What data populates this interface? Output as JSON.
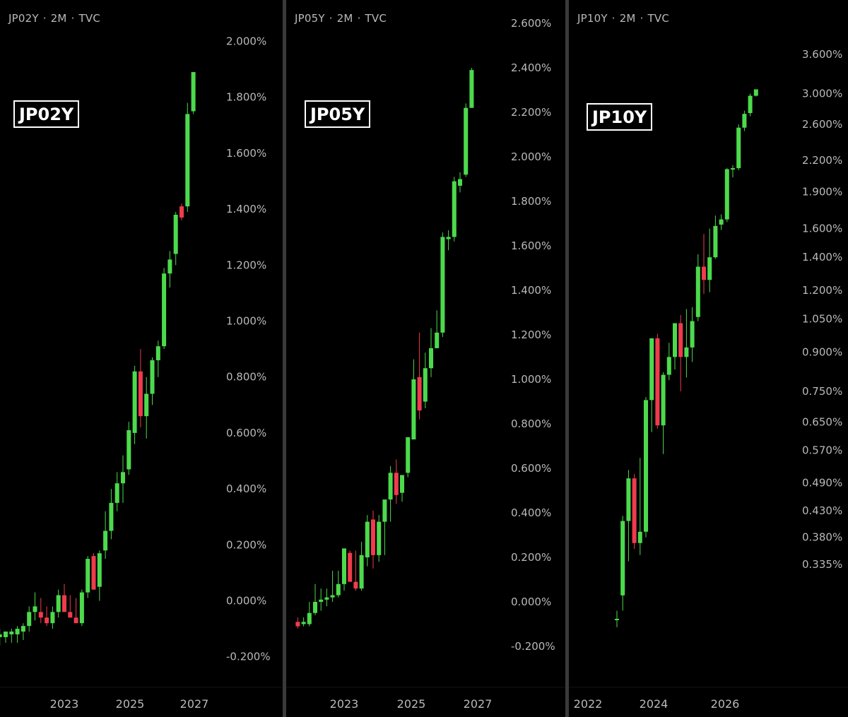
{
  "colors": {
    "up": "#4cda4c",
    "down": "#ef3b4d",
    "text": "#b9b9b9",
    "divider": "#3a3a3a"
  },
  "chart_data": [
    {
      "type": "candlestick",
      "header": {
        "symbol": "JP02Y",
        "interval": "2M",
        "source": "TVC"
      },
      "label": "JP02Y",
      "y_scale": "linear",
      "yticks": [
        "2.000%",
        "1.800%",
        "1.600%",
        "1.400%",
        "1.200%",
        "1.000%",
        "0.800%",
        "0.600%",
        "0.400%",
        "0.200%",
        "0.000%",
        "-0.200%"
      ],
      "ylim": [
        -0.24,
        2.2
      ],
      "xticks": [
        "2023",
        "2025",
        "2027"
      ],
      "candles": [
        {
          "x": "2021-03",
          "o": -0.13,
          "h": -0.1,
          "l": -0.16,
          "c": -0.12
        },
        {
          "x": "2021-05",
          "o": -0.13,
          "h": -0.11,
          "l": -0.15,
          "c": -0.11
        },
        {
          "x": "2021-07",
          "o": -0.12,
          "h": -0.1,
          "l": -0.15,
          "c": -0.11
        },
        {
          "x": "2021-09",
          "o": -0.12,
          "h": -0.09,
          "l": -0.15,
          "c": -0.1
        },
        {
          "x": "2021-11",
          "o": -0.11,
          "h": -0.08,
          "l": -0.14,
          "c": -0.09
        },
        {
          "x": "2022-01",
          "o": -0.09,
          "h": -0.02,
          "l": -0.11,
          "c": -0.04
        },
        {
          "x": "2022-03",
          "o": -0.04,
          "h": 0.03,
          "l": -0.07,
          "c": -0.02
        },
        {
          "x": "2022-05",
          "o": -0.04,
          "h": 0.01,
          "l": -0.08,
          "c": -0.06
        },
        {
          "x": "2022-07",
          "o": -0.06,
          "h": -0.02,
          "l": -0.09,
          "c": -0.08
        },
        {
          "x": "2022-09",
          "o": -0.08,
          "h": -0.02,
          "l": -0.1,
          "c": -0.04
        },
        {
          "x": "2022-11",
          "o": -0.04,
          "h": 0.04,
          "l": -0.06,
          "c": 0.02
        },
        {
          "x": "2023-01",
          "o": 0.02,
          "h": 0.06,
          "l": -0.04,
          "c": -0.04
        },
        {
          "x": "2023-03",
          "o": -0.04,
          "h": 0.02,
          "l": -0.06,
          "c": -0.06
        },
        {
          "x": "2023-05",
          "o": -0.06,
          "h": 0.01,
          "l": -0.08,
          "c": -0.08
        },
        {
          "x": "2023-07",
          "o": -0.08,
          "h": 0.04,
          "l": -0.09,
          "c": 0.03
        },
        {
          "x": "2023-09",
          "o": 0.03,
          "h": 0.16,
          "l": 0.01,
          "c": 0.15
        },
        {
          "x": "2023-11",
          "o": 0.16,
          "h": 0.17,
          "l": 0.05,
          "c": 0.04
        },
        {
          "x": "2024-01",
          "o": 0.05,
          "h": 0.18,
          "l": 0.0,
          "c": 0.17
        },
        {
          "x": "2024-03",
          "o": 0.18,
          "h": 0.32,
          "l": 0.15,
          "c": 0.25
        },
        {
          "x": "2024-05",
          "o": 0.25,
          "h": 0.4,
          "l": 0.22,
          "c": 0.35
        },
        {
          "x": "2024-07",
          "o": 0.35,
          "h": 0.46,
          "l": 0.32,
          "c": 0.42
        },
        {
          "x": "2024-09",
          "o": 0.42,
          "h": 0.52,
          "l": 0.35,
          "c": 0.46
        },
        {
          "x": "2024-11",
          "o": 0.47,
          "h": 0.64,
          "l": 0.45,
          "c": 0.61
        },
        {
          "x": "2025-01",
          "o": 0.6,
          "h": 0.84,
          "l": 0.56,
          "c": 0.82
        },
        {
          "x": "2025-03",
          "o": 0.82,
          "h": 0.9,
          "l": 0.62,
          "c": 0.66
        },
        {
          "x": "2025-05",
          "o": 0.66,
          "h": 0.8,
          "l": 0.58,
          "c": 0.74
        },
        {
          "x": "2025-07",
          "o": 0.74,
          "h": 0.87,
          "l": 0.7,
          "c": 0.86
        },
        {
          "x": "2025-09",
          "o": 0.86,
          "h": 0.93,
          "l": 0.8,
          "c": 0.91
        },
        {
          "x": "2025-11",
          "o": 0.91,
          "h": 1.19,
          "l": 0.9,
          "c": 1.17
        },
        {
          "x": "2026-01",
          "o": 1.17,
          "h": 1.25,
          "l": 1.12,
          "c": 1.22
        },
        {
          "x": "2026-03",
          "o": 1.24,
          "h": 1.39,
          "l": 1.2,
          "c": 1.38
        },
        {
          "x": "2026-05",
          "o": 1.41,
          "h": 1.42,
          "l": 1.36,
          "c": 1.37
        },
        {
          "x": "2026-07",
          "o": 1.41,
          "h": 1.78,
          "l": 1.39,
          "c": 1.74
        },
        {
          "x": "2026-09",
          "o": 1.75,
          "h": 1.89,
          "l": 1.74,
          "c": 1.89
        }
      ]
    },
    {
      "type": "candlestick",
      "header": {
        "symbol": "JP05Y",
        "interval": "2M",
        "source": "TVC"
      },
      "label": "JP05Y",
      "y_scale": "linear",
      "yticks": [
        "2.600%",
        "2.400%",
        "2.200%",
        "2.000%",
        "1.800%",
        "1.600%",
        "1.400%",
        "1.200%",
        "1.000%",
        "0.800%",
        "0.600%",
        "0.400%",
        "0.200%",
        "0.000%",
        "-0.200%"
      ],
      "ylim": [
        -0.23,
        2.65
      ],
      "xticks": [
        "2023",
        "2025",
        "2027"
      ],
      "candles": [
        {
          "x": "2021-09",
          "o": -0.09,
          "h": -0.07,
          "l": -0.12,
          "c": -0.11
        },
        {
          "x": "2021-11",
          "o": -0.1,
          "h": -0.07,
          "l": -0.11,
          "c": -0.09
        },
        {
          "x": "2022-01",
          "o": -0.1,
          "h": 0.0,
          "l": -0.11,
          "c": -0.05
        },
        {
          "x": "2022-03",
          "o": -0.05,
          "h": 0.08,
          "l": -0.06,
          "c": 0.0
        },
        {
          "x": "2022-05",
          "o": 0.0,
          "h": 0.06,
          "l": -0.04,
          "c": 0.01
        },
        {
          "x": "2022-07",
          "o": 0.01,
          "h": 0.06,
          "l": -0.02,
          "c": 0.02
        },
        {
          "x": "2022-09",
          "o": 0.02,
          "h": 0.14,
          "l": 0.0,
          "c": 0.03
        },
        {
          "x": "2022-11",
          "o": 0.03,
          "h": 0.14,
          "l": 0.02,
          "c": 0.08
        },
        {
          "x": "2023-01",
          "o": 0.08,
          "h": 0.24,
          "l": 0.05,
          "c": 0.24
        },
        {
          "x": "2023-03",
          "o": 0.22,
          "h": 0.23,
          "l": 0.11,
          "c": 0.09
        },
        {
          "x": "2023-05",
          "o": 0.09,
          "h": 0.23,
          "l": 0.05,
          "c": 0.06
        },
        {
          "x": "2023-07",
          "o": 0.06,
          "h": 0.27,
          "l": 0.05,
          "c": 0.21
        },
        {
          "x": "2023-09",
          "o": 0.2,
          "h": 0.39,
          "l": 0.16,
          "c": 0.36
        },
        {
          "x": "2023-11",
          "o": 0.37,
          "h": 0.41,
          "l": 0.15,
          "c": 0.21
        },
        {
          "x": "2024-01",
          "o": 0.21,
          "h": 0.39,
          "l": 0.18,
          "c": 0.36
        },
        {
          "x": "2024-03",
          "o": 0.36,
          "h": 0.45,
          "l": 0.21,
          "c": 0.46
        },
        {
          "x": "2024-05",
          "o": 0.46,
          "h": 0.61,
          "l": 0.36,
          "c": 0.58
        },
        {
          "x": "2024-07",
          "o": 0.58,
          "h": 0.64,
          "l": 0.44,
          "c": 0.48
        },
        {
          "x": "2024-09",
          "o": 0.49,
          "h": 0.57,
          "l": 0.45,
          "c": 0.57
        },
        {
          "x": "2024-11",
          "o": 0.58,
          "h": 0.74,
          "l": 0.56,
          "c": 0.74
        },
        {
          "x": "2025-01",
          "o": 0.73,
          "h": 1.09,
          "l": 0.73,
          "c": 1.0
        },
        {
          "x": "2025-03",
          "o": 1.01,
          "h": 1.21,
          "l": 0.82,
          "c": 0.86
        },
        {
          "x": "2025-05",
          "o": 0.9,
          "h": 1.12,
          "l": 0.87,
          "c": 1.05
        },
        {
          "x": "2025-07",
          "o": 1.05,
          "h": 1.23,
          "l": 1.01,
          "c": 1.14
        },
        {
          "x": "2025-09",
          "o": 1.14,
          "h": 1.31,
          "l": 1.14,
          "c": 1.21
        },
        {
          "x": "2025-11",
          "o": 1.21,
          "h": 1.66,
          "l": 1.19,
          "c": 1.64
        },
        {
          "x": "2026-01",
          "o": 1.63,
          "h": 1.67,
          "l": 1.58,
          "c": 1.64
        },
        {
          "x": "2026-03",
          "o": 1.64,
          "h": 1.91,
          "l": 1.62,
          "c": 1.89
        },
        {
          "x": "2026-05",
          "o": 1.87,
          "h": 1.93,
          "l": 1.84,
          "c": 1.9
        },
        {
          "x": "2026-07",
          "o": 1.92,
          "h": 2.24,
          "l": 1.91,
          "c": 2.22
        },
        {
          "x": "2026-09",
          "o": 2.22,
          "h": 2.4,
          "l": 2.22,
          "c": 2.39
        }
      ]
    },
    {
      "type": "candlestick",
      "header": {
        "symbol": "JP10Y",
        "interval": "2M",
        "source": "TVC"
      },
      "label": "JP10Y",
      "y_scale": "log",
      "yticks": [
        "3.600%",
        "3.000%",
        "2.600%",
        "2.200%",
        "1.900%",
        "1.600%",
        "1.400%",
        "1.200%",
        "1.050%",
        "0.900%",
        "0.750%",
        "0.650%",
        "0.570%",
        "0.490%",
        "0.430%",
        "0.380%",
        "0.335%"
      ],
      "ylim": [
        0.3,
        3.9
      ],
      "xticks": [
        "2022",
        "2024",
        "2026"
      ],
      "candles": [
        {
          "x": "2022-11",
          "o": 0.26,
          "h": 0.27,
          "l": 0.25,
          "c": 0.26
        },
        {
          "x": "2023-01",
          "o": 0.29,
          "h": 0.42,
          "l": 0.27,
          "c": 0.41
        },
        {
          "x": "2023-03",
          "o": 0.41,
          "h": 0.52,
          "l": 0.34,
          "c": 0.5
        },
        {
          "x": "2023-05",
          "o": 0.5,
          "h": 0.51,
          "l": 0.36,
          "c": 0.37
        },
        {
          "x": "2023-07",
          "o": 0.37,
          "h": 0.55,
          "l": 0.35,
          "c": 0.39
        },
        {
          "x": "2023-09",
          "o": 0.39,
          "h": 0.73,
          "l": 0.38,
          "c": 0.72
        },
        {
          "x": "2023-11",
          "o": 0.72,
          "h": 0.95,
          "l": 0.62,
          "c": 0.96
        },
        {
          "x": "2024-01",
          "o": 0.96,
          "h": 0.98,
          "l": 0.63,
          "c": 0.64
        },
        {
          "x": "2024-03",
          "o": 0.64,
          "h": 0.82,
          "l": 0.56,
          "c": 0.81
        },
        {
          "x": "2024-05",
          "o": 0.81,
          "h": 0.94,
          "l": 0.79,
          "c": 0.88
        },
        {
          "x": "2024-07",
          "o": 0.88,
          "h": 1.02,
          "l": 0.83,
          "c": 1.03
        },
        {
          "x": "2024-09",
          "o": 1.03,
          "h": 1.07,
          "l": 0.75,
          "c": 0.88
        },
        {
          "x": "2024-11",
          "o": 0.88,
          "h": 1.1,
          "l": 0.8,
          "c": 0.92
        },
        {
          "x": "2025-01",
          "o": 0.92,
          "h": 1.11,
          "l": 0.86,
          "c": 1.04
        },
        {
          "x": "2025-03",
          "o": 1.06,
          "h": 1.42,
          "l": 1.04,
          "c": 1.34
        },
        {
          "x": "2025-05",
          "o": 1.34,
          "h": 1.56,
          "l": 1.18,
          "c": 1.26
        },
        {
          "x": "2025-07",
          "o": 1.26,
          "h": 1.6,
          "l": 1.19,
          "c": 1.4
        },
        {
          "x": "2025-09",
          "o": 1.4,
          "h": 1.7,
          "l": 1.39,
          "c": 1.62
        },
        {
          "x": "2025-11",
          "o": 1.63,
          "h": 1.71,
          "l": 1.59,
          "c": 1.67
        },
        {
          "x": "2026-01",
          "o": 1.67,
          "h": 2.12,
          "l": 1.65,
          "c": 2.11
        },
        {
          "x": "2026-03",
          "o": 2.11,
          "h": 2.15,
          "l": 2.03,
          "c": 2.12
        },
        {
          "x": "2026-05",
          "o": 2.12,
          "h": 2.6,
          "l": 2.1,
          "c": 2.56
        },
        {
          "x": "2026-07",
          "o": 2.56,
          "h": 2.77,
          "l": 2.52,
          "c": 2.73
        },
        {
          "x": "2026-09",
          "o": 2.74,
          "h": 3.0,
          "l": 2.7,
          "c": 2.97
        },
        {
          "x": "2026-11",
          "o": 2.97,
          "h": 3.06,
          "l": 2.96,
          "c": 3.06
        }
      ]
    }
  ]
}
